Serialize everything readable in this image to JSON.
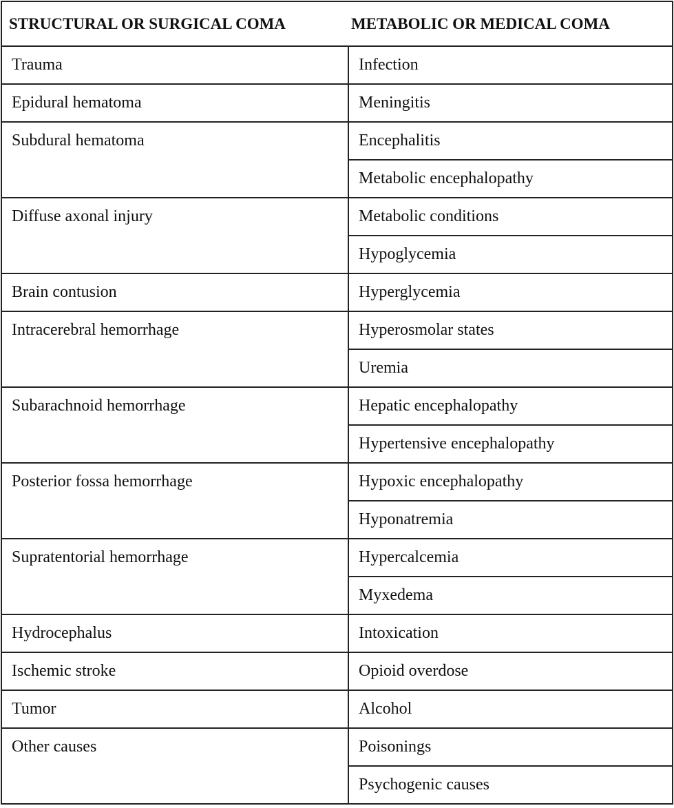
{
  "table": {
    "headers": [
      "STRUCTURAL OR SURGICAL COMA",
      "METABOLIC OR MEDICAL COMA"
    ],
    "structural": [
      {
        "text": "Trauma",
        "rows": 1
      },
      {
        "text": "Epidural hematoma",
        "rows": 1
      },
      {
        "text": "Subdural hematoma",
        "rows": 2
      },
      {
        "text": "Diffuse axonal injury",
        "rows": 2
      },
      {
        "text": "Brain contusion",
        "rows": 1
      },
      {
        "text": "Intracerebral hemorrhage",
        "rows": 2
      },
      {
        "text": "Subarachnoid hemorrhage",
        "rows": 2
      },
      {
        "text": "Posterior fossa hemorrhage",
        "rows": 2
      },
      {
        "text": "Supratentorial hemorrhage",
        "rows": 2
      },
      {
        "text": "Hydrocephalus",
        "rows": 1
      },
      {
        "text": "Ischemic stroke",
        "rows": 1
      },
      {
        "text": "Tumor",
        "rows": 1
      },
      {
        "text": "Other causes",
        "rows": 2
      }
    ],
    "metabolic": [
      "Infection",
      "Meningitis",
      "Encephalitis",
      "Metabolic encephalopathy",
      "Metabolic conditions",
      "Hypoglycemia",
      "Hyperglycemia",
      "Hyperosmolar states",
      "Uremia",
      "Hepatic encephalopathy",
      "Hypertensive encephalopathy",
      "Hypoxic encephalopathy",
      "Hyponatremia",
      "Hypercalcemia",
      "Myxedema",
      "Intoxication",
      "Opioid overdose",
      "Alcohol",
      "Poisonings",
      "Psychogenic causes"
    ]
  }
}
